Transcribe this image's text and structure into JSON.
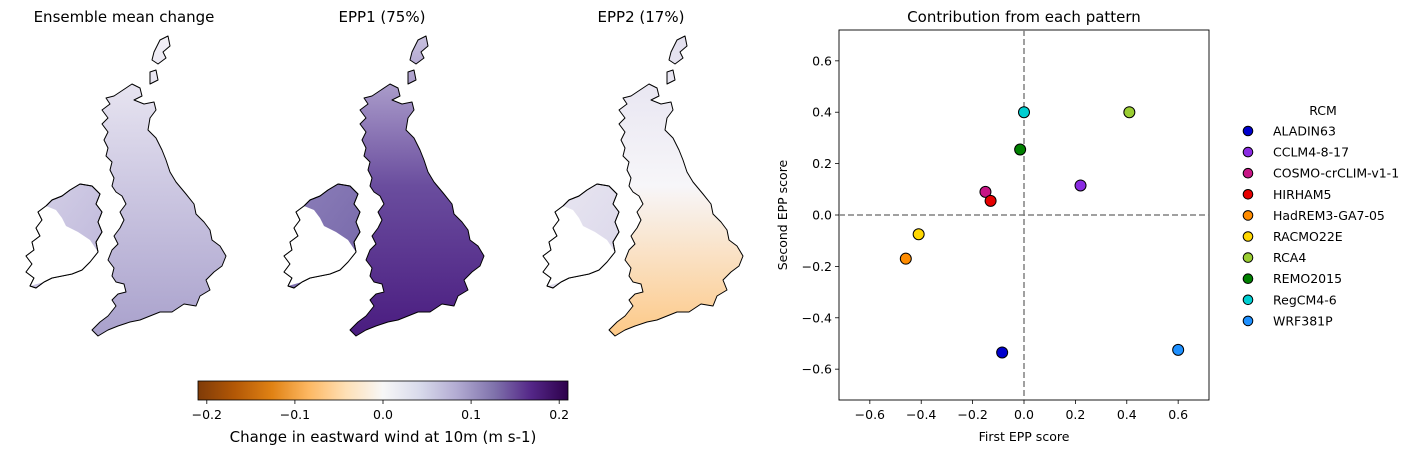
{
  "panels": [
    {
      "title": "Ensemble mean change",
      "fill": "mean"
    },
    {
      "title": "EPP1 (75%)",
      "fill": "epp1"
    },
    {
      "title": "EPP2 (17%)",
      "fill": "epp2"
    }
  ],
  "colorbar": {
    "label": "Change in eastward wind at 10m (m s-1)",
    "range": [
      -0.21,
      0.21
    ],
    "ticks": [
      -0.2,
      -0.1,
      0.0,
      0.1,
      0.2
    ],
    "tick_labels": [
      "−0.2",
      "−0.1",
      "0.0",
      "0.1",
      "0.2"
    ],
    "colormap": [
      "#7f3b08",
      "#b35806",
      "#e08214",
      "#fdb863",
      "#fee0b6",
      "#f7f7f7",
      "#d8daeb",
      "#b2abd2",
      "#8073ac",
      "#542788",
      "#2d004b"
    ]
  },
  "chart_data": {
    "type": "scatter",
    "title": "Contribution from each pattern",
    "xlabel": "First EPP score",
    "ylabel": "Second EPP score",
    "xlim": [
      -0.72,
      0.72
    ],
    "ylim": [
      -0.72,
      0.72
    ],
    "xticks": [
      -0.6,
      -0.4,
      -0.2,
      0.0,
      0.2,
      0.4,
      0.6
    ],
    "yticks": [
      -0.6,
      -0.4,
      -0.2,
      0.0,
      0.2,
      0.4,
      0.6
    ],
    "xtick_labels": [
      "−0.6",
      "−0.4",
      "−0.2",
      "0.0",
      "0.2",
      "0.4",
      "0.6"
    ],
    "ytick_labels": [
      "−0.6",
      "−0.4",
      "−0.2",
      "0.0",
      "0.2",
      "0.4",
      "0.6"
    ],
    "grid": false,
    "reference_lines": {
      "x": 0.0,
      "y": 0.0,
      "style": "dashed",
      "color": "#808080"
    },
    "legend": {
      "title": "RCM",
      "position": "outside-right"
    },
    "series": [
      {
        "name": "ALADIN63",
        "color": "#0000cd",
        "x": -0.085,
        "y": -0.535
      },
      {
        "name": "CCLM4-8-17",
        "color": "#8a2be2",
        "x": 0.22,
        "y": 0.115
      },
      {
        "name": "COSMO-crCLIM-v1-1",
        "color": "#c71585",
        "x": -0.15,
        "y": 0.09
      },
      {
        "name": "HIRHAM5",
        "color": "#e60000",
        "x": -0.13,
        "y": 0.055
      },
      {
        "name": "HadREM3-GA7-05",
        "color": "#ff8c00",
        "x": -0.46,
        "y": -0.17
      },
      {
        "name": "RACMO22E",
        "color": "#ffd700",
        "x": -0.41,
        "y": -0.075
      },
      {
        "name": "RCA4",
        "color": "#9acd32",
        "x": 0.41,
        "y": 0.4
      },
      {
        "name": "REMO2015",
        "color": "#008000",
        "x": -0.015,
        "y": 0.255
      },
      {
        "name": "RegCM4-6",
        "color": "#00ced1",
        "x": 0.0,
        "y": 0.4
      },
      {
        "name": "WRF381P",
        "color": "#1e90ff",
        "x": 0.6,
        "y": -0.525
      }
    ]
  }
}
